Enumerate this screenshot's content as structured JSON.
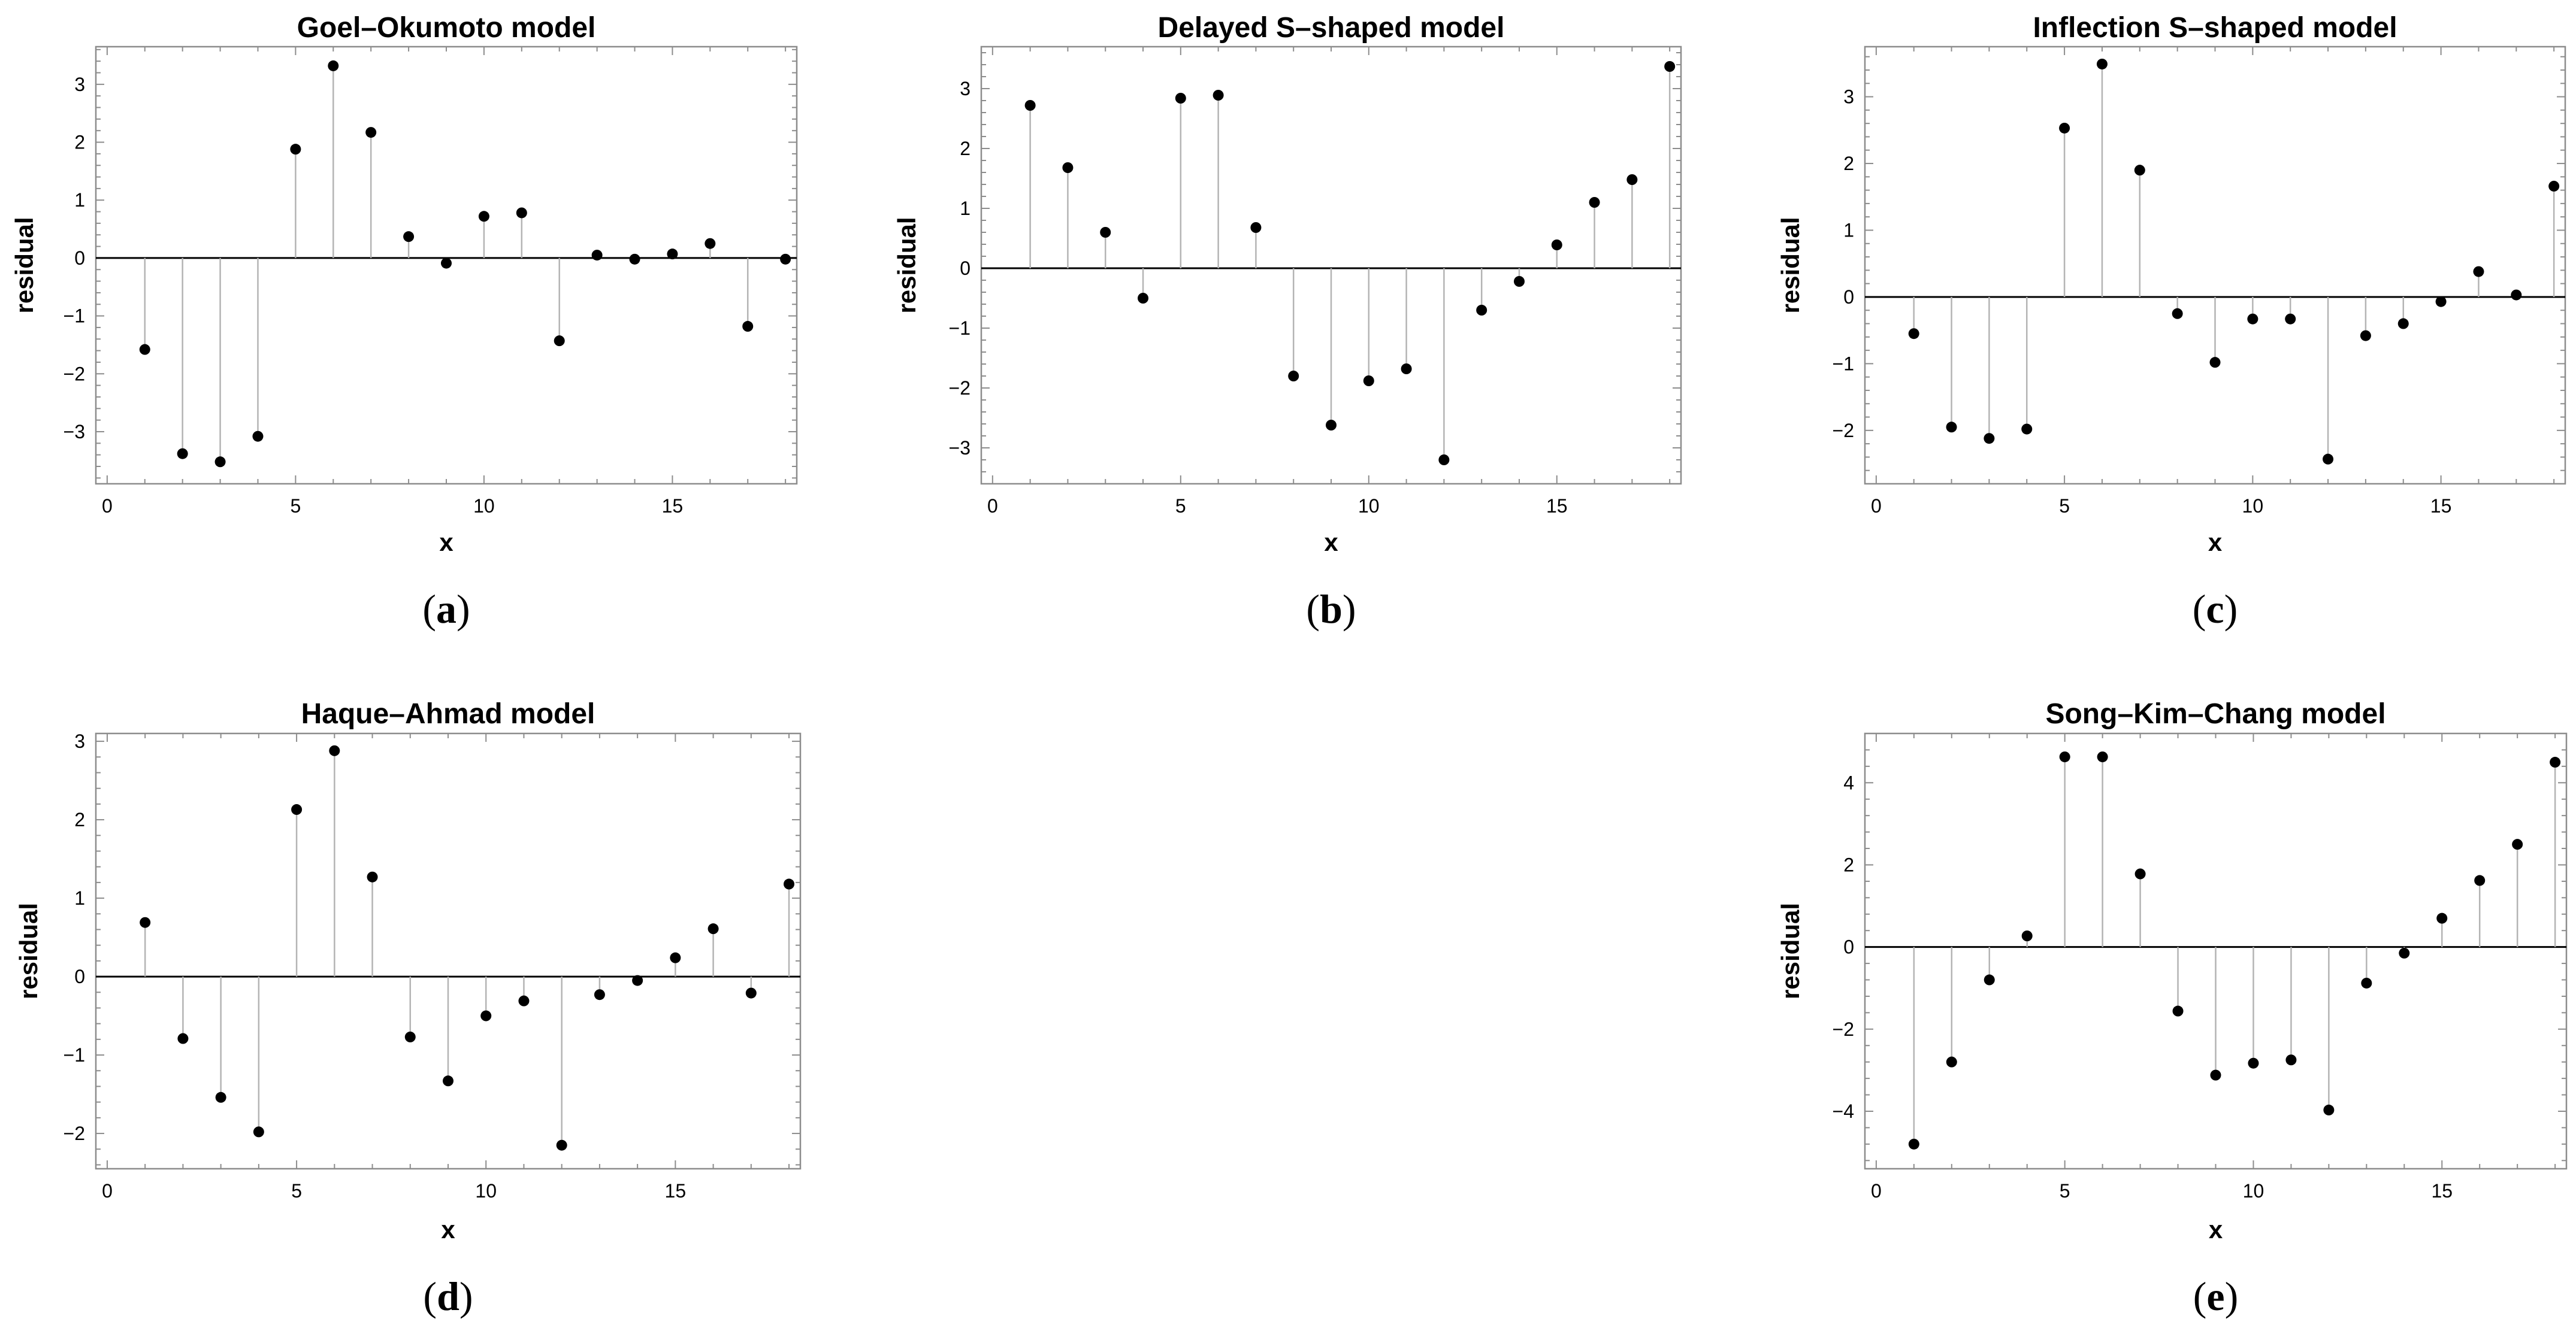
{
  "chart_data": [
    {
      "type": "scatter",
      "title": "Goel–Okumoto model",
      "xlabel": "x",
      "ylabel": "residual",
      "caption": "(a)",
      "caption_letter": "a",
      "xlim": [
        -0.3,
        18.3
      ],
      "ylim": [
        -3.9,
        3.65
      ],
      "xticks": [
        0,
        5,
        10,
        15
      ],
      "yticks": [
        -3,
        -2,
        -1,
        0,
        1,
        2,
        3
      ],
      "x": [
        1,
        2,
        3,
        4,
        5,
        6,
        7,
        8,
        9,
        10,
        11,
        12,
        13,
        14,
        15,
        16,
        17,
        18
      ],
      "y": [
        -1.58,
        -3.38,
        -3.52,
        -3.08,
        1.88,
        3.32,
        2.17,
        0.37,
        -0.09,
        0.72,
        0.78,
        -1.43,
        0.05,
        -0.02,
        0.07,
        0.25,
        -1.18,
        -0.02
      ]
    },
    {
      "type": "scatter",
      "title": "Delayed S–shaped model",
      "xlabel": "x",
      "ylabel": "residual",
      "caption": "(b)",
      "caption_letter": "b",
      "xlim": [
        -0.3,
        18.3
      ],
      "ylim": [
        -3.6,
        3.7
      ],
      "xticks": [
        0,
        5,
        10,
        15
      ],
      "yticks": [
        -3,
        -2,
        -1,
        0,
        1,
        2,
        3
      ],
      "x": [
        1,
        2,
        3,
        4,
        5,
        6,
        7,
        8,
        9,
        10,
        11,
        12,
        13,
        14,
        15,
        16,
        17,
        18
      ],
      "y": [
        2.72,
        1.68,
        0.6,
        -0.5,
        2.84,
        2.89,
        0.68,
        -1.8,
        -2.62,
        -1.88,
        -1.68,
        -3.2,
        -0.7,
        -0.22,
        0.39,
        1.1,
        1.48,
        3.37
      ]
    },
    {
      "type": "scatter",
      "title": "Inflection S–shaped model",
      "xlabel": "x",
      "ylabel": "residual",
      "caption": "(c)",
      "caption_letter": "c",
      "xlim": [
        -0.3,
        18.3
      ],
      "ylim": [
        -2.8,
        3.75
      ],
      "xticks": [
        0,
        5,
        10,
        15
      ],
      "yticks": [
        -2,
        -1,
        0,
        1,
        2,
        3
      ],
      "x": [
        1,
        2,
        3,
        4,
        5,
        6,
        7,
        8,
        9,
        10,
        11,
        12,
        13,
        14,
        15,
        16,
        17,
        18
      ],
      "y": [
        -0.55,
        -1.95,
        -2.12,
        -1.98,
        2.53,
        3.49,
        1.9,
        -0.25,
        -0.98,
        -0.33,
        -0.33,
        -2.43,
        -0.58,
        -0.4,
        -0.07,
        0.38,
        0.03,
        1.66
      ]
    },
    {
      "type": "scatter",
      "title": "Haque–Ahmad model",
      "xlabel": "x",
      "ylabel": "residual",
      "caption": "(d)",
      "caption_letter": "d",
      "xlim": [
        -0.3,
        18.3
      ],
      "ylim": [
        -2.45,
        3.1
      ],
      "xticks": [
        0,
        5,
        10,
        15
      ],
      "yticks": [
        -2,
        -1,
        0,
        1,
        2,
        3
      ],
      "x": [
        1,
        2,
        3,
        4,
        5,
        6,
        7,
        8,
        9,
        10,
        11,
        12,
        13,
        14,
        15,
        16,
        17,
        18
      ],
      "y": [
        0.69,
        -0.79,
        -1.54,
        -1.98,
        2.13,
        2.88,
        1.27,
        -0.77,
        -1.33,
        -0.5,
        -0.31,
        -2.15,
        -0.23,
        -0.05,
        0.24,
        0.61,
        -0.21,
        1.18
      ]
    },
    {
      "type": "scatter",
      "title": "Song–Kim–Chang model",
      "xlabel": "x",
      "ylabel": "residual",
      "caption": "(e)",
      "caption_letter": "e",
      "xlim": [
        -0.3,
        18.3
      ],
      "ylim": [
        -5.4,
        5.2
      ],
      "xticks": [
        0,
        5,
        10,
        15
      ],
      "yticks": [
        -4,
        -2,
        0,
        2,
        4
      ],
      "x": [
        1,
        2,
        3,
        4,
        5,
        6,
        7,
        8,
        9,
        10,
        11,
        12,
        13,
        14,
        15,
        16,
        17,
        18
      ],
      "y": [
        -4.8,
        -2.8,
        -0.8,
        0.27,
        4.63,
        4.63,
        1.78,
        -1.56,
        -3.12,
        -2.83,
        -2.75,
        -3.97,
        -0.88,
        -0.15,
        0.7,
        1.62,
        2.5,
        4.5
      ]
    }
  ]
}
